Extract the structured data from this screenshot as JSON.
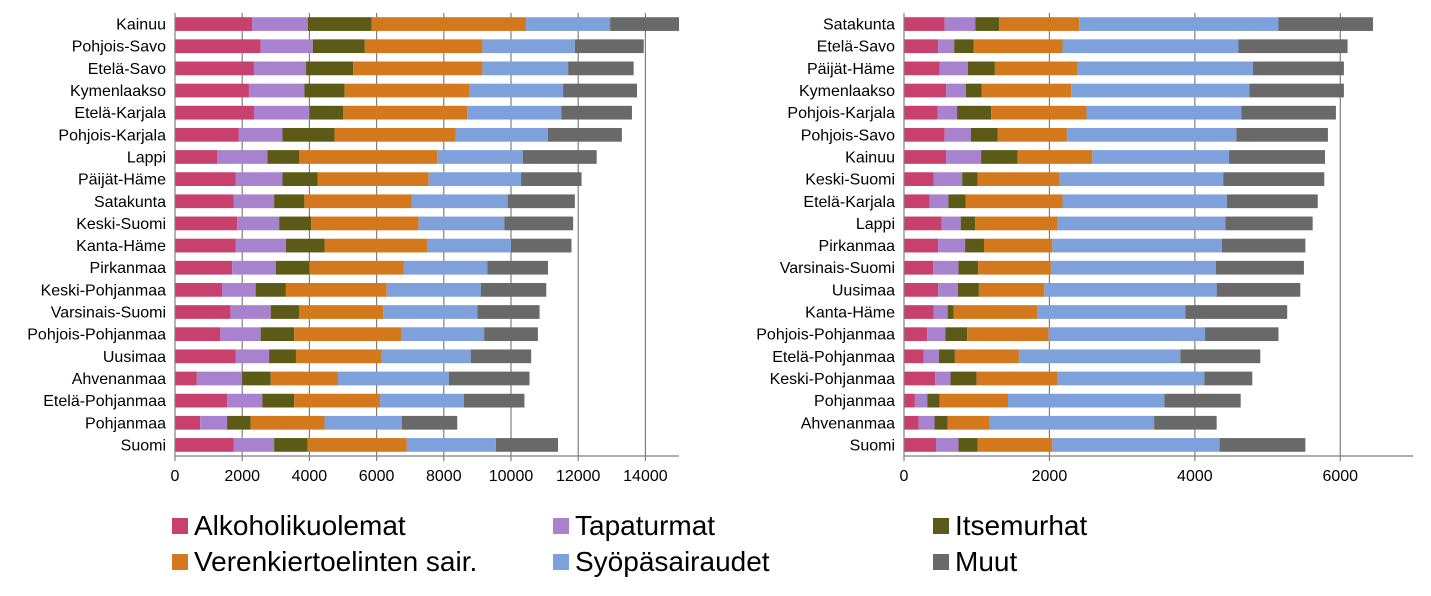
{
  "colors": {
    "Alkoholikuolemat": "#c8416e",
    "Tapaturmat": "#a882cf",
    "Itsemurhat": "#5b5b17",
    "Verenkiertoelinten sair.": "#d3781c",
    "Syöpäsairaudet": "#7ea1dc",
    "Muut": "#696969"
  },
  "legend": [
    "Alkoholikuolemat",
    "Tapaturmat",
    "Itsemurhat",
    "Verenkiertoelinten sair.",
    "Syöpäsairaudet",
    "Muut"
  ],
  "chart_data": [
    {
      "type": "bar",
      "orientation": "horizontal",
      "stacked": true,
      "xlim": [
        0,
        15000
      ],
      "xticks": [
        0,
        2000,
        4000,
        6000,
        8000,
        10000,
        12000,
        14000
      ],
      "vertical_gridlines": true,
      "categories": [
        "Kainuu",
        "Pohjois-Savo",
        "Etelä-Savo",
        "Kymenlaakso",
        "Etelä-Karjala",
        "Pohjois-Karjala",
        "Lappi",
        "Päijät-Häme",
        "Satakunta",
        "Keski-Suomi",
        "Kanta-Häme",
        "Pirkanmaa",
        "Keski-Pohjanmaa",
        "Varsinais-Suomi",
        "Pohjois-Pohjanmaa",
        "Uusimaa",
        "Ahvenanmaa",
        "Etelä-Pohjanmaa",
        "Pohjanmaa",
        "Suomi"
      ],
      "series": [
        {
          "name": "Alkoholikuolemat",
          "values": [
            2300,
            2550,
            2350,
            2200,
            2350,
            1900,
            1250,
            1800,
            1750,
            1850,
            1800,
            1700,
            1400,
            1650,
            1350,
            1800,
            650,
            1550,
            750,
            1750
          ]
        },
        {
          "name": "Tapaturmat",
          "values": [
            1650,
            1550,
            1550,
            1650,
            1650,
            1300,
            1500,
            1400,
            1200,
            1250,
            1500,
            1300,
            1000,
            1200,
            1200,
            1000,
            1350,
            1050,
            800,
            1200
          ]
        },
        {
          "name": "Itsemurhat",
          "values": [
            1900,
            1550,
            1400,
            1200,
            1000,
            1550,
            950,
            1050,
            900,
            950,
            1150,
            1000,
            900,
            850,
            1000,
            800,
            850,
            950,
            700,
            1000
          ]
        },
        {
          "name": "Verenkiertoelinten sair.",
          "values": [
            4600,
            3500,
            3850,
            3700,
            3700,
            3600,
            4100,
            3300,
            3200,
            3200,
            3050,
            2800,
            3000,
            2500,
            3200,
            2550,
            2000,
            2550,
            2200,
            2950
          ]
        },
        {
          "name": "Syöpäsairaudet",
          "values": [
            2500,
            2750,
            2550,
            2800,
            2800,
            2750,
            2550,
            2750,
            2850,
            2550,
            2500,
            2500,
            2800,
            2800,
            2450,
            2650,
            3300,
            2500,
            2300,
            2650
          ]
        },
        {
          "name": "Muut",
          "values": [
            2050,
            2050,
            1950,
            2200,
            2100,
            2200,
            2200,
            1800,
            2000,
            2050,
            1800,
            1800,
            1950,
            1850,
            1600,
            1800,
            2400,
            1800,
            1650,
            1850
          ]
        }
      ]
    },
    {
      "type": "bar",
      "orientation": "horizontal",
      "stacked": true,
      "xlim": [
        0,
        7000
      ],
      "xticks": [
        0,
        2000,
        4000,
        6000
      ],
      "vertical_gridlines": true,
      "categories": [
        "Satakunta",
        "Etelä-Savo",
        "Päijät-Häme",
        "Kymenlaakso",
        "Pohjois-Karjala",
        "Pohjois-Savo",
        "Kainuu",
        "Keski-Suomi",
        "Etelä-Karjala",
        "Lappi",
        "Pirkanmaa",
        "Varsinais-Suomi",
        "Uusimaa",
        "Kanta-Häme",
        "Pohjois-Pohjanmaa",
        "Etelä-Pohjanmaa",
        "Keski-Pohjanmaa",
        "Pohjanmaa",
        "Ahvenanmaa",
        "Suomi"
      ],
      "series": [
        {
          "name": "Alkoholikuolemat",
          "values": [
            560,
            470,
            490,
            580,
            460,
            560,
            580,
            410,
            350,
            520,
            470,
            400,
            470,
            410,
            320,
            270,
            430,
            150,
            200,
            440
          ]
        },
        {
          "name": "Tapaturmat",
          "values": [
            420,
            220,
            390,
            270,
            270,
            360,
            480,
            390,
            260,
            260,
            370,
            350,
            270,
            190,
            250,
            210,
            210,
            170,
            220,
            310
          ]
        },
        {
          "name": "Itsemurhat",
          "values": [
            330,
            270,
            370,
            220,
            470,
            370,
            500,
            210,
            240,
            200,
            260,
            270,
            290,
            80,
            300,
            220,
            360,
            170,
            180,
            260
          ]
        },
        {
          "name": "Verenkiertoelinten sair.",
          "values": [
            1100,
            1220,
            1140,
            1230,
            1310,
            950,
            1030,
            1130,
            1330,
            1130,
            940,
            1000,
            900,
            1150,
            1120,
            880,
            1110,
            940,
            580,
            1030
          ]
        },
        {
          "name": "Syöpäsairaudet",
          "values": [
            2740,
            2420,
            2410,
            2450,
            2130,
            2330,
            1880,
            2250,
            2260,
            2310,
            2330,
            2270,
            2370,
            2040,
            2150,
            2220,
            2020,
            2150,
            2260,
            2300
          ]
        },
        {
          "name": "Muut",
          "values": [
            1300,
            1500,
            1250,
            1300,
            1300,
            1260,
            1320,
            1390,
            1250,
            1200,
            1150,
            1210,
            1150,
            1400,
            1010,
            1100,
            660,
            1050,
            860,
            1180
          ]
        }
      ]
    }
  ]
}
